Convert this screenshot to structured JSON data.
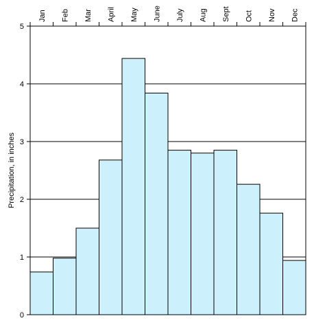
{
  "chart_data": {
    "type": "bar",
    "title": "",
    "xlabel": "",
    "ylabel": "Precipitation, in inches",
    "categories": [
      "Jan",
      "Feb",
      "Mar",
      "April",
      "May",
      "June",
      "July",
      "Aug",
      "Sept",
      "Oct",
      "Nov",
      "Dec"
    ],
    "values": [
      0.74,
      0.98,
      1.5,
      2.68,
      4.44,
      3.84,
      2.85,
      2.8,
      2.85,
      2.26,
      1.76,
      0.94
    ],
    "ylim": [
      0,
      5
    ],
    "yticks": [
      "0",
      "1",
      "2",
      "3",
      "4",
      "5"
    ],
    "grid": true,
    "category_axis_position": "top",
    "bar_color": "#cdf1fc",
    "bar_stroke": "#000000"
  }
}
